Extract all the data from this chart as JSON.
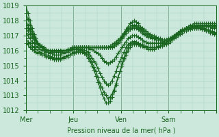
{
  "title": "",
  "xlabel": "Pression niveau de la mer( hPa )",
  "ylabel": "",
  "ylim": [
    1012,
    1019
  ],
  "xlim": [
    0,
    96
  ],
  "day_ticks": [
    0,
    24,
    48,
    72,
    96
  ],
  "day_labels": [
    "Mer",
    "Jeu",
    "Ven",
    "Sam",
    ""
  ],
  "bg_color": "#cce8dc",
  "grid_color": "#aad4c4",
  "line_color": "#1a6620",
  "marker": "+",
  "markersize": 4,
  "linewidth": 0.9,
  "series": [
    [
      1019.0,
      1018.5,
      1018.0,
      1017.5,
      1017.1,
      1016.8,
      1016.5,
      1016.3,
      1016.2,
      1016.1,
      1016.0,
      1016.0,
      1016.0,
      1016.0,
      1016.0,
      1016.0,
      1016.0,
      1016.0,
      1016.0,
      1016.0,
      1016.0,
      1016.1,
      1016.1,
      1016.2,
      1016.2,
      1016.2,
      1016.2,
      1016.2,
      1016.2,
      1016.2,
      1016.2,
      1016.2,
      1016.2,
      1016.2,
      1016.2,
      1016.2,
      1016.2,
      1016.2,
      1016.2,
      1016.2,
      1016.2,
      1016.2,
      1016.3,
      1016.4,
      1016.5,
      1016.6,
      1016.7,
      1016.8,
      1017.0,
      1017.2,
      1017.4,
      1017.6,
      1017.8,
      1017.9,
      1018.0,
      1017.9,
      1017.8,
      1017.6,
      1017.5,
      1017.4,
      1017.3,
      1017.2,
      1017.1,
      1017.0,
      1017.0,
      1016.9,
      1016.8,
      1016.8,
      1016.7,
      1016.7,
      1016.7,
      1016.7,
      1016.8,
      1016.8,
      1016.9,
      1017.0,
      1017.1,
      1017.2,
      1017.3,
      1017.4,
      1017.5,
      1017.6,
      1017.7,
      1017.7,
      1017.8,
      1017.8,
      1017.8,
      1017.8,
      1017.8,
      1017.8,
      1017.8,
      1017.8,
      1017.8,
      1017.8,
      1017.8,
      1017.8
    ],
    [
      1018.5,
      1018.1,
      1017.7,
      1017.3,
      1017.0,
      1016.7,
      1016.5,
      1016.3,
      1016.2,
      1016.1,
      1016.0,
      1016.0,
      1016.0,
      1016.0,
      1016.0,
      1016.0,
      1016.0,
      1016.0,
      1016.0,
      1016.0,
      1016.0,
      1016.1,
      1016.1,
      1016.2,
      1016.2,
      1016.2,
      1016.2,
      1016.2,
      1016.2,
      1016.2,
      1016.2,
      1016.2,
      1016.2,
      1016.2,
      1016.2,
      1016.2,
      1016.2,
      1016.2,
      1016.2,
      1016.2,
      1016.2,
      1016.2,
      1016.2,
      1016.3,
      1016.4,
      1016.5,
      1016.6,
      1016.7,
      1016.9,
      1017.1,
      1017.3,
      1017.5,
      1017.6,
      1017.7,
      1017.7,
      1017.7,
      1017.6,
      1017.5,
      1017.4,
      1017.3,
      1017.2,
      1017.1,
      1017.0,
      1016.9,
      1016.9,
      1016.8,
      1016.8,
      1016.7,
      1016.7,
      1016.7,
      1016.7,
      1016.7,
      1016.8,
      1016.8,
      1016.9,
      1017.0,
      1017.1,
      1017.2,
      1017.3,
      1017.4,
      1017.5,
      1017.5,
      1017.6,
      1017.6,
      1017.7,
      1017.7,
      1017.7,
      1017.7,
      1017.7,
      1017.7,
      1017.7,
      1017.7,
      1017.7,
      1017.7,
      1017.7,
      1017.7
    ],
    [
      1018.0,
      1017.7,
      1017.4,
      1017.1,
      1016.8,
      1016.6,
      1016.4,
      1016.3,
      1016.2,
      1016.1,
      1016.0,
      1016.0,
      1016.0,
      1016.0,
      1016.0,
      1016.0,
      1016.0,
      1016.0,
      1016.0,
      1016.0,
      1016.0,
      1016.0,
      1016.1,
      1016.1,
      1016.2,
      1016.2,
      1016.2,
      1016.2,
      1016.2,
      1016.2,
      1016.2,
      1016.2,
      1016.2,
      1016.2,
      1016.2,
      1016.2,
      1016.2,
      1016.2,
      1016.2,
      1016.2,
      1016.2,
      1016.2,
      1016.2,
      1016.2,
      1016.3,
      1016.4,
      1016.5,
      1016.6,
      1016.8,
      1017.0,
      1017.2,
      1017.4,
      1017.5,
      1017.6,
      1017.6,
      1017.6,
      1017.5,
      1017.4,
      1017.3,
      1017.2,
      1017.1,
      1017.0,
      1016.9,
      1016.9,
      1016.8,
      1016.7,
      1016.7,
      1016.7,
      1016.6,
      1016.6,
      1016.7,
      1016.7,
      1016.8,
      1016.9,
      1017.0,
      1017.1,
      1017.2,
      1017.3,
      1017.4,
      1017.4,
      1017.5,
      1017.5,
      1017.6,
      1017.6,
      1017.6,
      1017.7,
      1017.7,
      1017.7,
      1017.7,
      1017.7,
      1017.7,
      1017.7,
      1017.7,
      1017.7,
      1017.7,
      1017.7
    ],
    [
      1017.7,
      1017.5,
      1017.3,
      1017.1,
      1016.9,
      1016.7,
      1016.5,
      1016.4,
      1016.3,
      1016.2,
      1016.1,
      1016.0,
      1016.0,
      1016.0,
      1016.0,
      1016.0,
      1016.0,
      1016.0,
      1016.0,
      1016.0,
      1016.0,
      1016.0,
      1016.1,
      1016.1,
      1016.2,
      1016.2,
      1016.2,
      1016.2,
      1016.2,
      1016.2,
      1016.2,
      1016.2,
      1016.2,
      1016.2,
      1016.2,
      1016.2,
      1016.2,
      1016.2,
      1016.2,
      1016.2,
      1016.2,
      1016.2,
      1016.2,
      1016.2,
      1016.3,
      1016.4,
      1016.5,
      1016.6,
      1016.8,
      1017.0,
      1017.2,
      1017.3,
      1017.4,
      1017.5,
      1017.5,
      1017.5,
      1017.4,
      1017.3,
      1017.2,
      1017.1,
      1017.0,
      1016.9,
      1016.9,
      1016.8,
      1016.8,
      1016.7,
      1016.7,
      1016.7,
      1016.7,
      1016.7,
      1016.7,
      1016.8,
      1016.8,
      1016.9,
      1017.0,
      1017.1,
      1017.2,
      1017.3,
      1017.3,
      1017.4,
      1017.5,
      1017.5,
      1017.5,
      1017.6,
      1017.6,
      1017.6,
      1017.7,
      1017.7,
      1017.7,
      1017.7,
      1017.7,
      1017.7,
      1017.7,
      1017.6,
      1017.6,
      1017.6
    ],
    [
      1017.5,
      1017.3,
      1017.1,
      1016.9,
      1016.7,
      1016.5,
      1016.4,
      1016.3,
      1016.2,
      1016.1,
      1016.0,
      1016.0,
      1016.0,
      1015.9,
      1015.9,
      1015.9,
      1015.9,
      1015.9,
      1015.9,
      1016.0,
      1016.0,
      1016.0,
      1016.0,
      1016.1,
      1016.1,
      1016.1,
      1016.2,
      1016.2,
      1016.2,
      1016.2,
      1016.2,
      1016.2,
      1016.1,
      1016.1,
      1016.0,
      1015.9,
      1015.8,
      1015.7,
      1015.5,
      1015.3,
      1015.2,
      1015.1,
      1015.2,
      1015.3,
      1015.4,
      1015.6,
      1015.8,
      1016.0,
      1016.2,
      1016.4,
      1016.6,
      1016.8,
      1016.9,
      1017.0,
      1017.0,
      1017.0,
      1016.9,
      1016.8,
      1016.7,
      1016.6,
      1016.6,
      1016.5,
      1016.5,
      1016.5,
      1016.5,
      1016.5,
      1016.5,
      1016.5,
      1016.5,
      1016.5,
      1016.6,
      1016.6,
      1016.7,
      1016.8,
      1016.9,
      1017.0,
      1017.1,
      1017.2,
      1017.3,
      1017.4,
      1017.5,
      1017.5,
      1017.5,
      1017.6,
      1017.6,
      1017.6,
      1017.6,
      1017.6,
      1017.6,
      1017.6,
      1017.6,
      1017.6,
      1017.6,
      1017.5,
      1017.5,
      1017.5
    ],
    [
      1017.2,
      1017.0,
      1016.8,
      1016.6,
      1016.5,
      1016.3,
      1016.2,
      1016.1,
      1016.0,
      1016.0,
      1015.9,
      1015.9,
      1015.8,
      1015.8,
      1015.7,
      1015.7,
      1015.7,
      1015.7,
      1015.8,
      1015.8,
      1015.9,
      1015.9,
      1016.0,
      1016.0,
      1016.1,
      1016.1,
      1016.1,
      1016.1,
      1016.1,
      1016.0,
      1016.0,
      1015.9,
      1015.7,
      1015.5,
      1015.3,
      1015.1,
      1014.8,
      1014.5,
      1014.2,
      1014.0,
      1013.8,
      1013.7,
      1013.8,
      1014.0,
      1014.3,
      1014.6,
      1015.0,
      1015.3,
      1015.6,
      1015.9,
      1016.2,
      1016.4,
      1016.5,
      1016.6,
      1016.6,
      1016.6,
      1016.5,
      1016.4,
      1016.4,
      1016.3,
      1016.3,
      1016.2,
      1016.2,
      1016.2,
      1016.2,
      1016.2,
      1016.2,
      1016.3,
      1016.3,
      1016.4,
      1016.4,
      1016.5,
      1016.6,
      1016.7,
      1016.8,
      1016.9,
      1017.0,
      1017.1,
      1017.2,
      1017.3,
      1017.3,
      1017.4,
      1017.4,
      1017.5,
      1017.5,
      1017.5,
      1017.5,
      1017.5,
      1017.5,
      1017.5,
      1017.4,
      1017.4,
      1017.3,
      1017.3,
      1017.2,
      1017.2
    ],
    [
      1016.8,
      1016.6,
      1016.5,
      1016.3,
      1016.2,
      1016.1,
      1016.0,
      1015.9,
      1015.8,
      1015.8,
      1015.7,
      1015.7,
      1015.6,
      1015.6,
      1015.5,
      1015.5,
      1015.5,
      1015.5,
      1015.5,
      1015.6,
      1015.6,
      1015.7,
      1015.7,
      1015.8,
      1015.9,
      1015.9,
      1016.0,
      1016.0,
      1016.0,
      1015.9,
      1015.8,
      1015.7,
      1015.5,
      1015.2,
      1014.9,
      1014.6,
      1014.2,
      1013.8,
      1013.5,
      1013.2,
      1013.0,
      1012.8,
      1012.9,
      1013.1,
      1013.4,
      1013.8,
      1014.2,
      1014.6,
      1015.0,
      1015.4,
      1015.7,
      1016.0,
      1016.2,
      1016.4,
      1016.4,
      1016.4,
      1016.4,
      1016.3,
      1016.3,
      1016.2,
      1016.2,
      1016.1,
      1016.1,
      1016.1,
      1016.1,
      1016.2,
      1016.2,
      1016.3,
      1016.3,
      1016.4,
      1016.5,
      1016.6,
      1016.7,
      1016.8,
      1016.9,
      1017.0,
      1017.1,
      1017.2,
      1017.3,
      1017.4,
      1017.4,
      1017.5,
      1017.5,
      1017.5,
      1017.5,
      1017.5,
      1017.5,
      1017.5,
      1017.5,
      1017.4,
      1017.4,
      1017.3,
      1017.3,
      1017.2,
      1017.2,
      1017.1
    ],
    [
      1016.5,
      1016.4,
      1016.2,
      1016.1,
      1016.0,
      1015.9,
      1015.8,
      1015.8,
      1015.7,
      1015.7,
      1015.6,
      1015.6,
      1015.5,
      1015.5,
      1015.4,
      1015.4,
      1015.4,
      1015.4,
      1015.5,
      1015.5,
      1015.6,
      1015.6,
      1015.7,
      1015.8,
      1015.8,
      1015.9,
      1015.9,
      1015.9,
      1015.9,
      1015.8,
      1015.7,
      1015.5,
      1015.3,
      1015.0,
      1014.7,
      1014.3,
      1013.9,
      1013.5,
      1013.1,
      1012.8,
      1012.5,
      1012.5,
      1012.6,
      1012.9,
      1013.3,
      1013.7,
      1014.2,
      1014.6,
      1015.1,
      1015.5,
      1015.9,
      1016.2,
      1016.4,
      1016.5,
      1016.5,
      1016.5,
      1016.4,
      1016.4,
      1016.3,
      1016.3,
      1016.2,
      1016.2,
      1016.2,
      1016.2,
      1016.2,
      1016.2,
      1016.3,
      1016.3,
      1016.4,
      1016.5,
      1016.6,
      1016.7,
      1016.8,
      1016.9,
      1017.0,
      1017.1,
      1017.2,
      1017.3,
      1017.4,
      1017.4,
      1017.5,
      1017.5,
      1017.5,
      1017.5,
      1017.5,
      1017.5,
      1017.5,
      1017.5,
      1017.4,
      1017.4,
      1017.3,
      1017.3,
      1017.2,
      1017.2,
      1017.1,
      1017.1
    ]
  ]
}
